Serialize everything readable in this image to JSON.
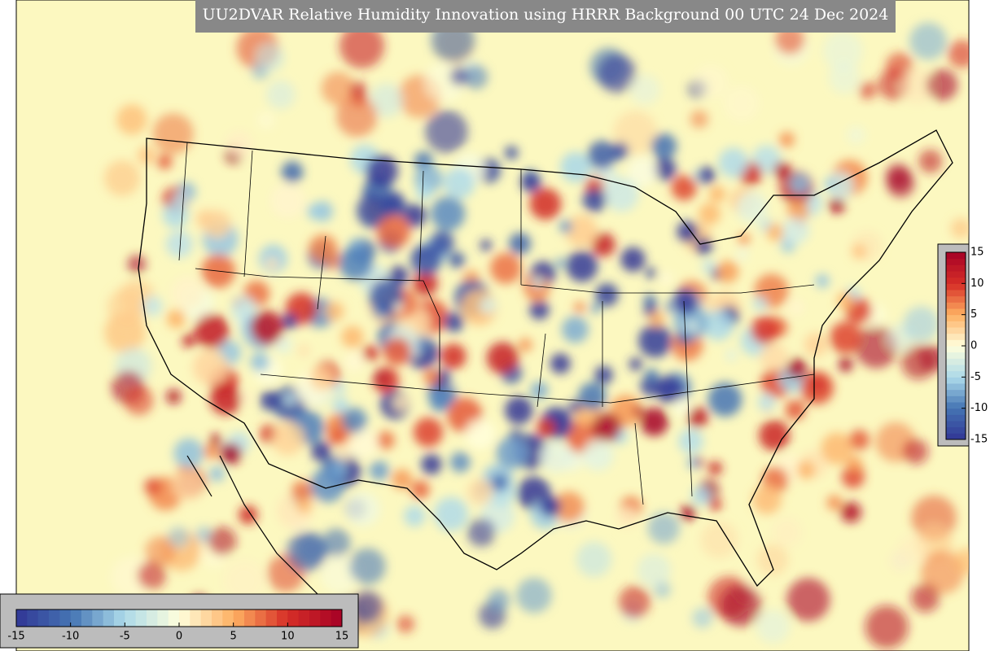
{
  "title": "UU2DVAR Relative Humidity Innovation using HRRR Background 00 UTC 24 Dec 2024",
  "colorbar_right": {
    "range": [
      -15,
      15
    ],
    "ticks": [
      15,
      10,
      5,
      0,
      -5,
      -10,
      -15
    ]
  },
  "colorbar_bottom": {
    "range": [
      -15,
      15
    ],
    "ticks": [
      -15,
      -10,
      -5,
      0,
      5,
      10,
      15
    ]
  }
}
